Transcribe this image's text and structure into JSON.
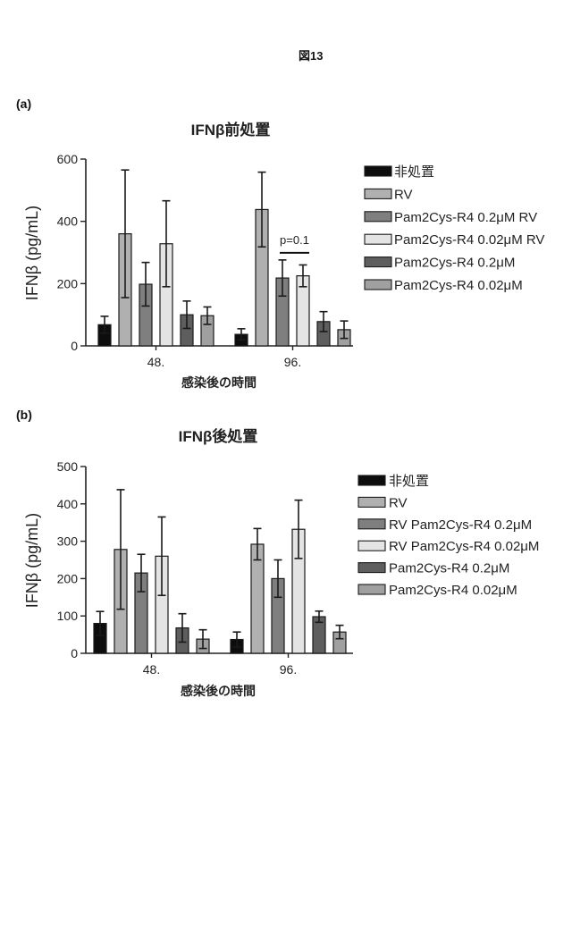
{
  "figure_label": "図13",
  "panels": [
    {
      "label": "(a)"
    },
    {
      "label": "(b)"
    }
  ],
  "chart_data": [
    {
      "type": "bar",
      "title": "IFNβ前処置",
      "xlabel": "感染後の時間",
      "ylabel": "IFNβ (pg/mL)",
      "categories": [
        "48.",
        "96."
      ],
      "ylim": [
        0,
        600
      ],
      "yticks": [
        0,
        200,
        400,
        600
      ],
      "legend": "right",
      "error_bars": true,
      "series": [
        {
          "name": "非処置",
          "color": "#0d0d0d",
          "values": [
            68,
            37
          ],
          "errors": [
            27,
            18
          ]
        },
        {
          "name": "RV",
          "color": "#b0b0b0",
          "values": [
            360,
            438
          ],
          "errors": [
            205,
            120
          ]
        },
        {
          "name": "Pam2Cys-R4 0.2μM RV",
          "color": "#7f7f7f",
          "values": [
            198,
            218
          ],
          "errors": [
            70,
            58
          ]
        },
        {
          "name": "Pam2Cys-R4 0.02μM RV",
          "color": "#e4e4e4",
          "values": [
            328,
            225
          ],
          "errors": [
            138,
            35
          ]
        },
        {
          "name": "Pam2Cys-R4 0.2μM",
          "color": "#5e5e5e",
          "values": [
            100,
            78
          ],
          "errors": [
            44,
            32
          ]
        },
        {
          "name": "Pam2Cys-R4 0.02μM",
          "color": "#a0a0a0",
          "values": [
            97,
            52
          ],
          "errors": [
            28,
            28
          ]
        }
      ],
      "annotations": [
        {
          "text": "p=0.1",
          "category_index": 1,
          "series_index": [
            2,
            3
          ]
        }
      ]
    },
    {
      "type": "bar",
      "title": "IFNβ後処置",
      "xlabel": "感染後の時間",
      "ylabel": "IFNβ (pg/mL)",
      "categories": [
        "48.",
        "96."
      ],
      "ylim": [
        0,
        500
      ],
      "yticks": [
        0,
        100,
        200,
        300,
        400,
        500
      ],
      "legend": "right",
      "error_bars": true,
      "series": [
        {
          "name": "非処置",
          "color": "#0d0d0d",
          "values": [
            80,
            37
          ],
          "errors": [
            32,
            20
          ]
        },
        {
          "name": "RV",
          "color": "#b0b0b0",
          "values": [
            278,
            292
          ],
          "errors": [
            160,
            42
          ]
        },
        {
          "name": "RV Pam2Cys-R4 0.2μM",
          "color": "#7f7f7f",
          "values": [
            215,
            200
          ],
          "errors": [
            50,
            50
          ]
        },
        {
          "name": "RV Pam2Cys-R4 0.02μM",
          "color": "#e4e4e4",
          "values": [
            260,
            332
          ],
          "errors": [
            105,
            78
          ]
        },
        {
          "name": "Pam2Cys-R4 0.2μM",
          "color": "#5e5e5e",
          "values": [
            68,
            98
          ],
          "errors": [
            38,
            15
          ]
        },
        {
          "name": "Pam2Cys-R4 0.02μM",
          "color": "#a0a0a0",
          "values": [
            38,
            57
          ],
          "errors": [
            25,
            18
          ]
        }
      ],
      "annotations": []
    }
  ]
}
